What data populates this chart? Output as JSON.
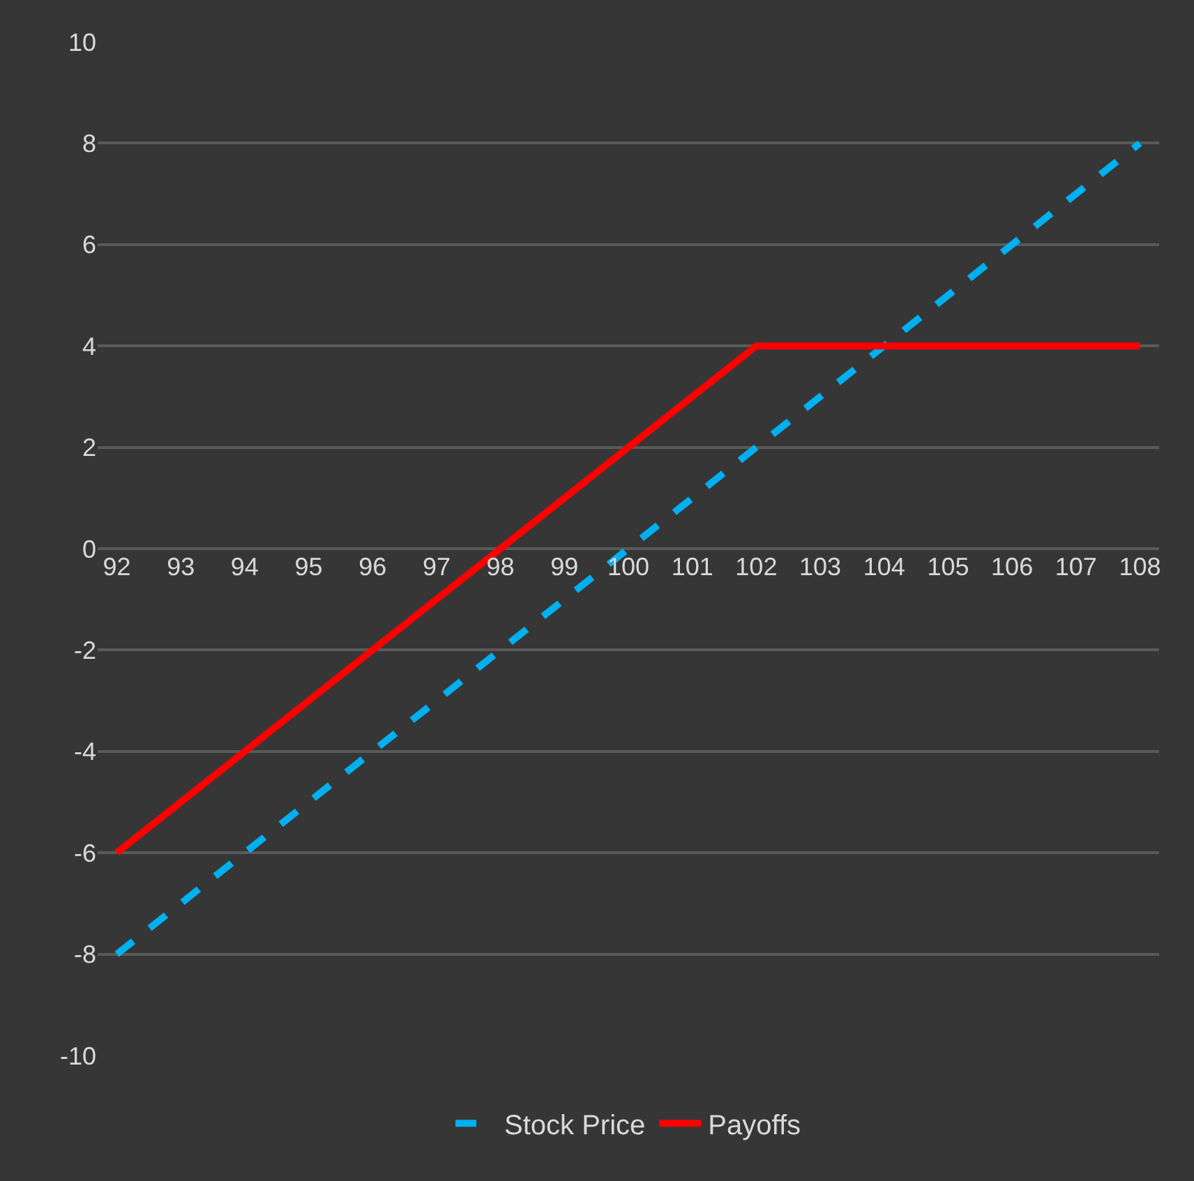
{
  "chart_data": {
    "type": "line",
    "categories": [
      "92",
      "93",
      "94",
      "95",
      "96",
      "97",
      "98",
      "99",
      "100",
      "101",
      "102",
      "103",
      "104",
      "105",
      "106",
      "107",
      "108"
    ],
    "series": [
      {
        "name": "Stock Price",
        "color": "#00b0f0",
        "line_style": "dashed",
        "values": [
          -8,
          -7,
          -6,
          -5,
          -4,
          -3,
          -2,
          -1,
          0,
          1,
          2,
          3,
          4,
          5,
          6,
          7,
          8
        ]
      },
      {
        "name": "Payoffs",
        "color": "#ff0000",
        "line_style": "solid",
        "values": [
          -6,
          -5,
          -4,
          -3,
          -2,
          -1,
          0,
          1,
          2,
          3,
          4,
          4,
          4,
          4,
          4,
          4,
          4
        ]
      }
    ],
    "ylim": [
      -10,
      10
    ],
    "yticks": [
      -10,
      -8,
      -6,
      -4,
      -2,
      0,
      2,
      4,
      6,
      8,
      10
    ],
    "grid": "y",
    "legend": "bottom",
    "marker": "none"
  }
}
